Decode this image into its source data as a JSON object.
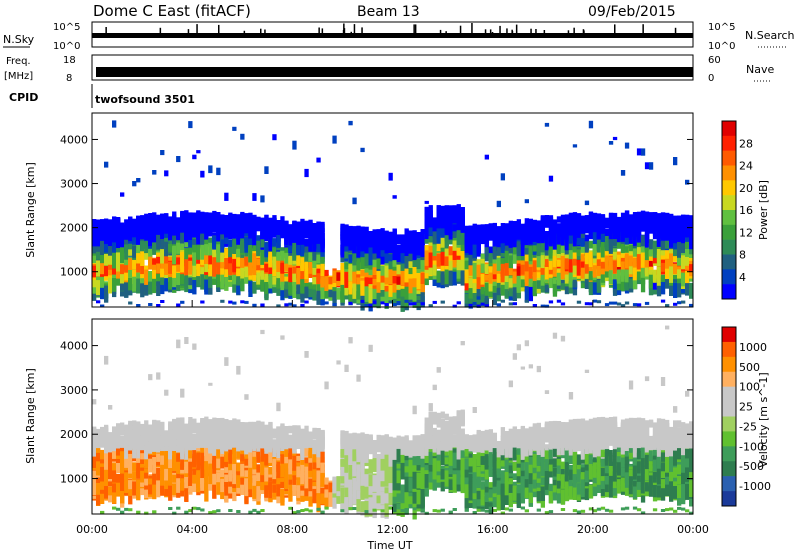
{
  "header": {
    "title": "Dome C East (fitACF)",
    "beam": "Beam 13",
    "date": "09/Feb/2015"
  },
  "top_panels": {
    "nsky_label": "N.Sky",
    "nsearch_label": "N.Search",
    "nsky_ticks": [
      "10^5",
      "10^0"
    ],
    "nsky_right_ticks": [
      "10^5",
      "10^0"
    ],
    "freq_label": "Freq.",
    "freq_unit": "[MHz]",
    "freq_ticks": [
      "18",
      "8"
    ],
    "nave_label": "Nave",
    "nave_ticks": [
      "60",
      "0"
    ],
    "cpid_label": "CPID",
    "cpid_value": "twofsound 3501"
  },
  "chart_data": [
    {
      "type": "heatmap",
      "name": "power",
      "ylabel": "Slant Range [km]",
      "ylim": [
        200,
        4600
      ],
      "yticks": [
        1000,
        2000,
        3000,
        4000
      ],
      "xlim": [
        0,
        24
      ],
      "colorbar_label": "Power [dB]",
      "colorbar_ticks": [
        "4",
        "8",
        "12",
        "16",
        "20",
        "24",
        "28"
      ],
      "colorbar_colors": [
        "#0000ff",
        "#0040c0",
        "#206080",
        "#2e8b57",
        "#3aa03a",
        "#60c040",
        "#c8d820",
        "#ffc800",
        "#ff9000",
        "#ff5a00",
        "#ff2000",
        "#e00000"
      ]
    },
    {
      "type": "heatmap",
      "name": "velocity",
      "ylabel": "Slant Range [km]",
      "ylim": [
        200,
        4600
      ],
      "yticks": [
        1000,
        2000,
        3000,
        4000
      ],
      "xlim": [
        0,
        24
      ],
      "xticks": [
        "00:00",
        "04:00",
        "08:00",
        "12:00",
        "16:00",
        "20:00",
        "00:00"
      ],
      "xlabel": "Time UT",
      "colorbar_label": "Velocity [m s^-1]",
      "colorbar_ticks": [
        "1000",
        "500",
        "100",
        "25",
        "-25",
        "-100",
        "-500",
        "-1000"
      ],
      "colorbar_colors": [
        "#1a3a9a",
        "#2a60b0",
        "#2e7d4f",
        "#3e9d5a",
        "#60c030",
        "#a0d060",
        "#c8c8c8",
        "#c8c8c8",
        "#ffb060",
        "#ff9000",
        "#ff6000",
        "#e00000"
      ]
    }
  ]
}
